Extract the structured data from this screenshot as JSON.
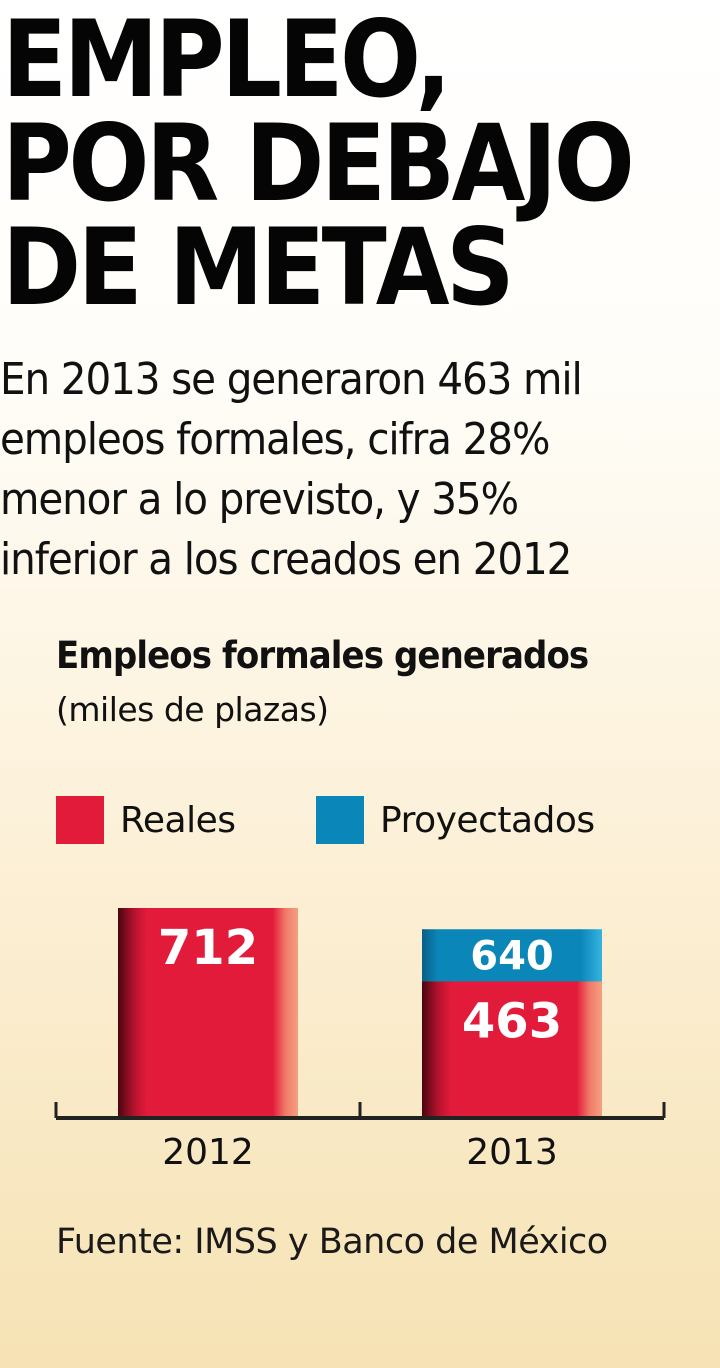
{
  "headline": [
    "EMPLEO,",
    "POR DEBAJO",
    "DE METAS"
  ],
  "subtitle": "En 2013 se generaron 463 mil empleos formales, cifra 28% menor a lo previsto, y 35% inferior a los creados en 2012",
  "source": "Fuente: IMSS y Banco de México",
  "colors": {
    "reales": "#e31b3b",
    "proyectados": "#0a86b8"
  },
  "chart_data": {
    "type": "bar",
    "title": "Empleos formales generados",
    "subtitle": "(miles de plazas)",
    "categories": [
      "2012",
      "2013"
    ],
    "series": [
      {
        "name": "Reales",
        "values": [
          712,
          463
        ]
      },
      {
        "name": "Proyectados",
        "values": [
          null,
          640
        ]
      }
    ],
    "ylim": [
      0,
      712
    ],
    "legend_position": "top",
    "grid": false
  }
}
